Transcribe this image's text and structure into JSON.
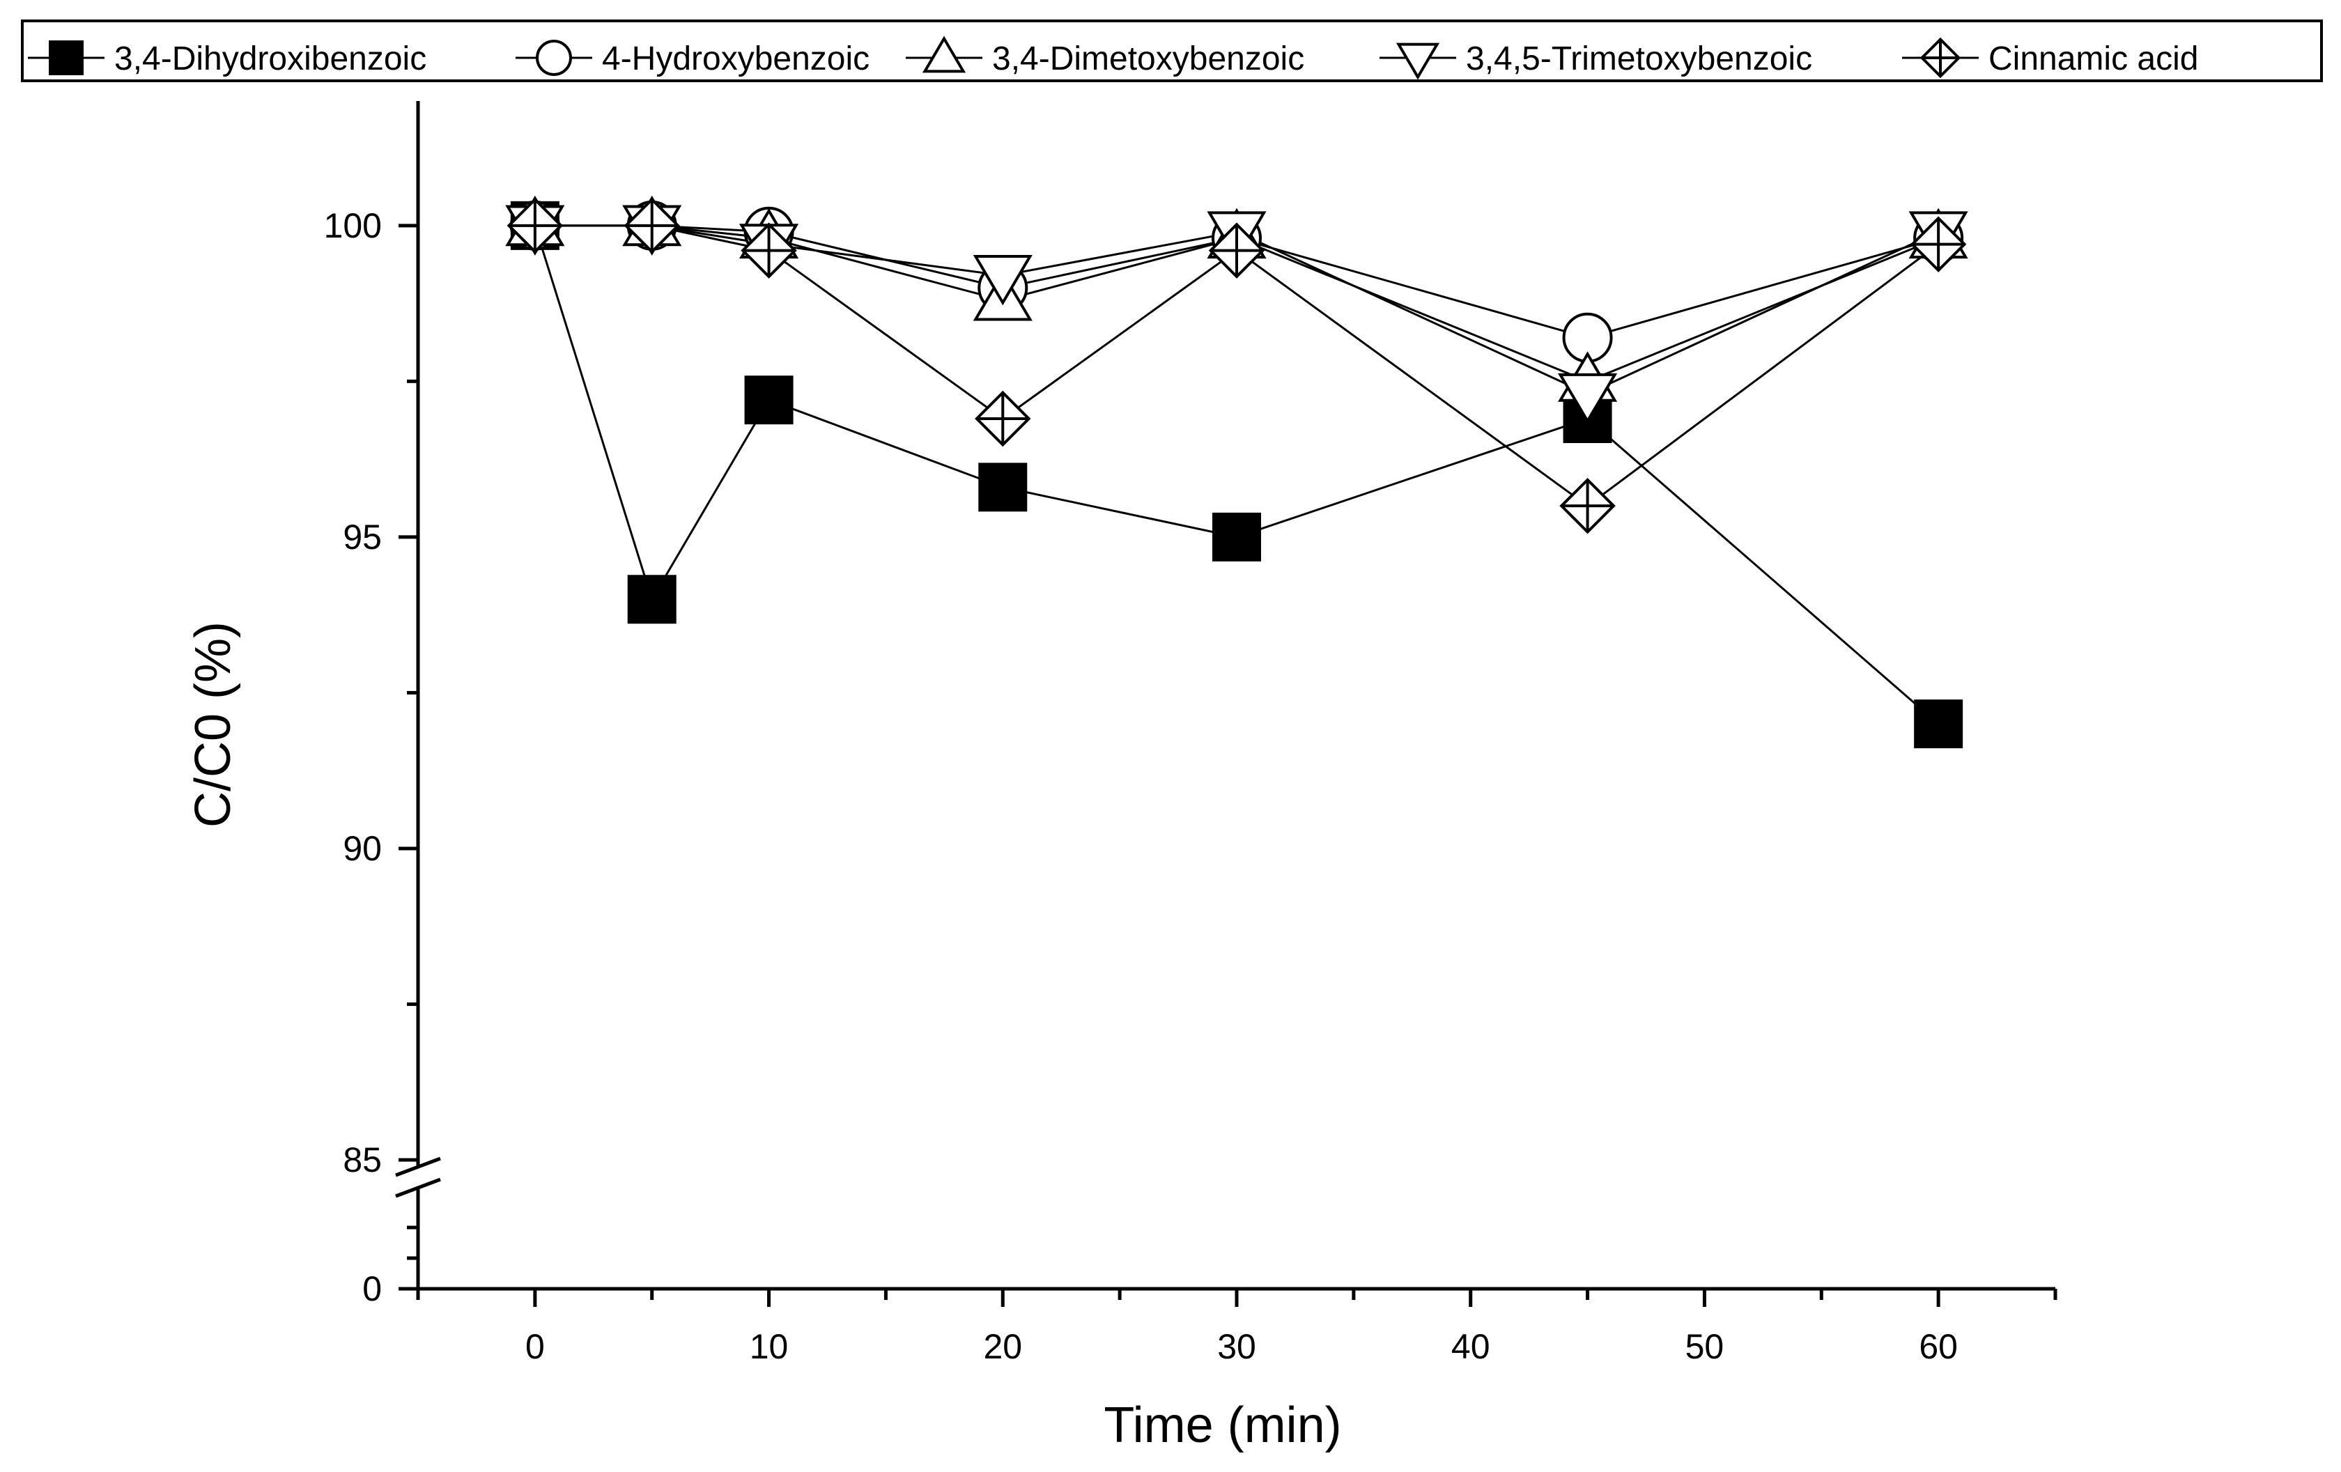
{
  "chart_data": {
    "type": "line",
    "title": "",
    "xlabel": "Time (min)",
    "ylabel": "C/C0 (%)",
    "xlim": [
      -5,
      65
    ],
    "x_ticks": [
      0,
      10,
      20,
      30,
      40,
      50,
      60
    ],
    "ylim_upper": [
      85,
      102
    ],
    "ylim_lower": [
      0,
      85
    ],
    "y_ticks": [
      85,
      90,
      95,
      100
    ],
    "y_ticks_lower": [
      0
    ],
    "axis_break": true,
    "grid": false,
    "legend_position": "top",
    "x": [
      0,
      5,
      10,
      20,
      30,
      45,
      60
    ],
    "series": [
      {
        "name": "3,4-Dihydroxibenzoic",
        "marker": "filled-square",
        "values": [
          100,
          94.0,
          97.2,
          95.8,
          95.0,
          96.9,
          92.0
        ]
      },
      {
        "name": "4-Hydroxybenzoic",
        "marker": "open-circle",
        "values": [
          100,
          100,
          99.9,
          99.0,
          99.8,
          98.2,
          99.8
        ]
      },
      {
        "name": "3,4-Dimetoxybenzoic",
        "marker": "open-triangle-up",
        "values": [
          100,
          100,
          99.8,
          98.8,
          99.8,
          97.5,
          99.8
        ]
      },
      {
        "name": "3,4,5-Trimetoxybenzoic",
        "marker": "open-triangle-down",
        "values": [
          100,
          100,
          99.7,
          99.2,
          99.9,
          97.3,
          99.9
        ]
      },
      {
        "name": "Cinnamic acid",
        "marker": "diamond-cross",
        "values": [
          100,
          100,
          99.6,
          96.9,
          99.6,
          95.5,
          99.7
        ]
      }
    ]
  }
}
